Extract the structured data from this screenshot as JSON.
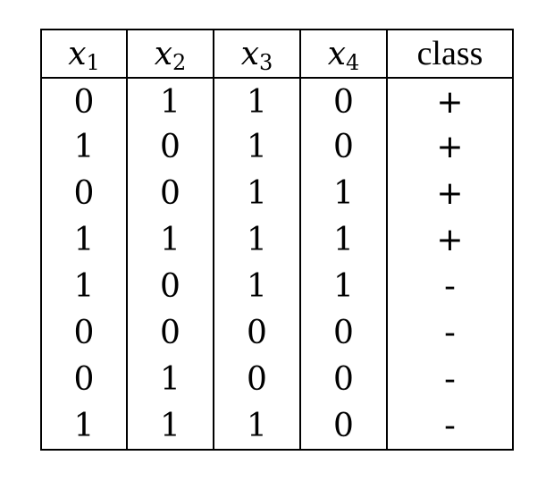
{
  "table": {
    "headers": [
      {
        "base": "x",
        "sub": "1"
      },
      {
        "base": "x",
        "sub": "2"
      },
      {
        "base": "x",
        "sub": "3"
      },
      {
        "base": "x",
        "sub": "4"
      },
      {
        "label": "class"
      }
    ],
    "rows": [
      [
        "0",
        "1",
        "1",
        "0",
        "+"
      ],
      [
        "1",
        "0",
        "1",
        "0",
        "+"
      ],
      [
        "0",
        "0",
        "1",
        "1",
        "+"
      ],
      [
        "1",
        "1",
        "1",
        "1",
        "+"
      ],
      [
        "1",
        "0",
        "1",
        "1",
        "-"
      ],
      [
        "0",
        "0",
        "0",
        "0",
        "-"
      ],
      [
        "0",
        "1",
        "0",
        "0",
        "-"
      ],
      [
        "1",
        "1",
        "1",
        "0",
        "-"
      ]
    ]
  }
}
